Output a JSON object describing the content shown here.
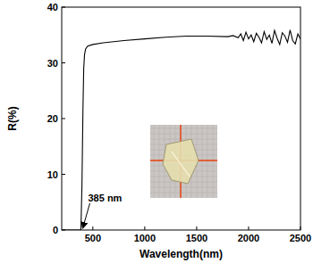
{
  "chart_data": {
    "type": "line",
    "x_label": "Wavelength(nm)",
    "y_label": "R(%)",
    "color": "#000000",
    "x": [
      200,
      250,
      300,
      350,
      385,
      395,
      405,
      412,
      420,
      430,
      450,
      500,
      600,
      800,
      1000,
      1200,
      1400,
      1600,
      1800,
      1850,
      1900,
      1925,
      1950,
      1975,
      2000,
      2025,
      2050,
      2075,
      2100,
      2125,
      2150,
      2175,
      2200,
      2225,
      2250,
      2275,
      2300,
      2325,
      2350,
      2375,
      2400,
      2425,
      2450,
      2475,
      2500
    ],
    "values": [
      0,
      0,
      0,
      0,
      0,
      8,
      22,
      29,
      31.5,
      32.5,
      33,
      33.3,
      33.6,
      34,
      34.3,
      34.6,
      34.8,
      34.8,
      34.7,
      34.9,
      34.5,
      35.2,
      34.0,
      35.5,
      34.3,
      35.0,
      33.8,
      35.3,
      34.6,
      33.6,
      35.6,
      34.2,
      35.0,
      33.5,
      35.8,
      34.4,
      33.3,
      35.4,
      34.8,
      33.7,
      35.9,
      34.0,
      33.4,
      35.2,
      34.3
    ],
    "xlim": [
      200,
      2500
    ],
    "ylim": [
      0,
      40
    ],
    "xticks": [
      500,
      1000,
      1500,
      2000,
      2500
    ],
    "yticks": [
      0,
      10,
      20,
      30,
      40
    ],
    "grid": false,
    "annotations": [
      {
        "text": "385 nm",
        "x": 385,
        "y": 0
      }
    ]
  }
}
